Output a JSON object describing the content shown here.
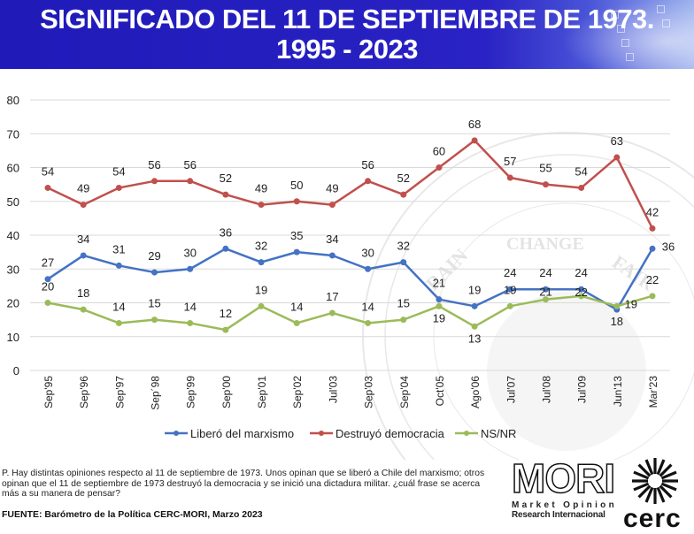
{
  "header": {
    "title_line1": "SIGNIFICADO DEL 11 DE SEPTIEMBRE DE 1973.",
    "title_line2": "1995 - 2023",
    "banner_color": "#2a22c4"
  },
  "chart_data": {
    "type": "line",
    "title": "SIGNIFICADO DEL 11 DE SEPTIEMBRE DE 1973. 1995 - 2023",
    "xlabel": "",
    "ylabel": "",
    "ylim": [
      0,
      80
    ],
    "yticks": [
      0,
      10,
      20,
      30,
      40,
      50,
      60,
      70,
      80
    ],
    "grid": true,
    "legend_position": "bottom",
    "categories": [
      "Sep'95",
      "Sep'96",
      "Sep'97",
      "Sep´98",
      "Sep'99",
      "Sep'00",
      "Sep'01",
      "Sep'02",
      "Jul'03",
      "Sep'03",
      "Sep'04",
      "Oct'05",
      "Ago'06",
      "Jul'07",
      "Jul'08",
      "Jul'09",
      "Jun'13",
      "Mar'23"
    ],
    "series": [
      {
        "name": "Liberó del marxismo",
        "color": "#4472c4",
        "values": [
          27,
          34,
          31,
          29,
          30,
          36,
          32,
          35,
          34,
          30,
          32,
          21,
          19,
          24,
          24,
          24,
          18,
          36
        ]
      },
      {
        "name": "Destruyó democracia",
        "color": "#c0504d",
        "values": [
          54,
          49,
          54,
          56,
          56,
          52,
          49,
          50,
          49,
          56,
          52,
          60,
          68,
          57,
          55,
          54,
          63,
          42
        ]
      },
      {
        "name": "NS/NR",
        "color": "#9bbb59",
        "values": [
          20,
          18,
          14,
          15,
          14,
          12,
          19,
          14,
          17,
          14,
          15,
          19,
          13,
          19,
          21,
          22,
          19,
          22
        ]
      }
    ]
  },
  "footer": {
    "question": "P. Hay distintas opiniones respecto al 11 de septiembre de 1973. Unos opinan que se liberó a Chile del marxismo; otros opinan que el 11 de septiembre de 1973 destruyó la democracia y se inició una dictadura militar. ¿cuál frase se acerca más a su manera de pensar?",
    "source": "FUENTE: Barómetro de la Política CERC-MORI, Marzo 2023"
  },
  "logos": {
    "mori": "MORI",
    "mori_sub1": "Market Opinion",
    "mori_sub2": "Research Internacional",
    "cerc": "cerc"
  }
}
